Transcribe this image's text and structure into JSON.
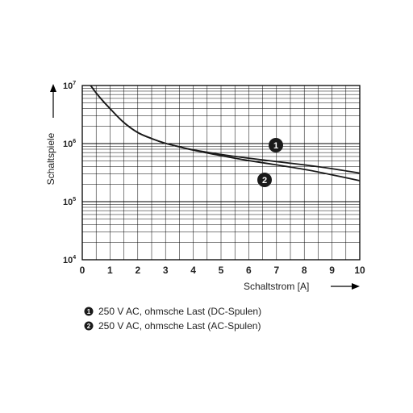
{
  "chart_data": {
    "type": "line",
    "xlabel": "Schaltstrom [A]",
    "ylabel": "Schaltspiele",
    "xlim": [
      0,
      10
    ],
    "ylim": [
      10000,
      10000000
    ],
    "yscale": "log",
    "grid": true,
    "x_ticks": [
      "0",
      "1",
      "2",
      "3",
      "4",
      "5",
      "6",
      "7",
      "8",
      "9",
      "10"
    ],
    "y_ticks": [
      {
        "base": "10",
        "exp": "4"
      },
      {
        "base": "10",
        "exp": "5"
      },
      {
        "base": "10",
        "exp": "6"
      },
      {
        "base": "10",
        "exp": "7"
      }
    ],
    "series": [
      {
        "marker": "1",
        "label": "250 V AC, ohmsche Last (DC-Spulen)",
        "x": [
          0.3,
          0.6,
          1.0,
          1.5,
          2.0,
          2.5,
          3.0,
          3.5,
          4.0,
          5.0,
          6.0,
          7.0,
          8.0,
          9.0,
          10.0
        ],
        "y": [
          10000000,
          6500000,
          4000000,
          2300000,
          1550000,
          1220000,
          1010000,
          880000,
          780000,
          650000,
          560000,
          490000,
          430000,
          370000,
          310000
        ]
      },
      {
        "marker": "2",
        "label": "250 V AC, ohmsche Last (AC-Spulen)",
        "x": [
          0.3,
          0.6,
          1.0,
          1.5,
          2.0,
          2.5,
          3.0,
          3.5,
          4.0,
          5.0,
          6.0,
          7.0,
          8.0,
          9.0,
          10.0
        ],
        "y": [
          10000000,
          6500000,
          4000000,
          2300000,
          1550000,
          1220000,
          1010000,
          880000,
          770000,
          620000,
          510000,
          430000,
          360000,
          290000,
          230000
        ]
      }
    ]
  },
  "legend": {
    "items": [
      {
        "num": "1",
        "text": "250 V AC, ohmsche Last (DC-Spulen)"
      },
      {
        "num": "2",
        "text": "250 V AC, ohmsche Last (AC-Spulen)"
      }
    ]
  }
}
